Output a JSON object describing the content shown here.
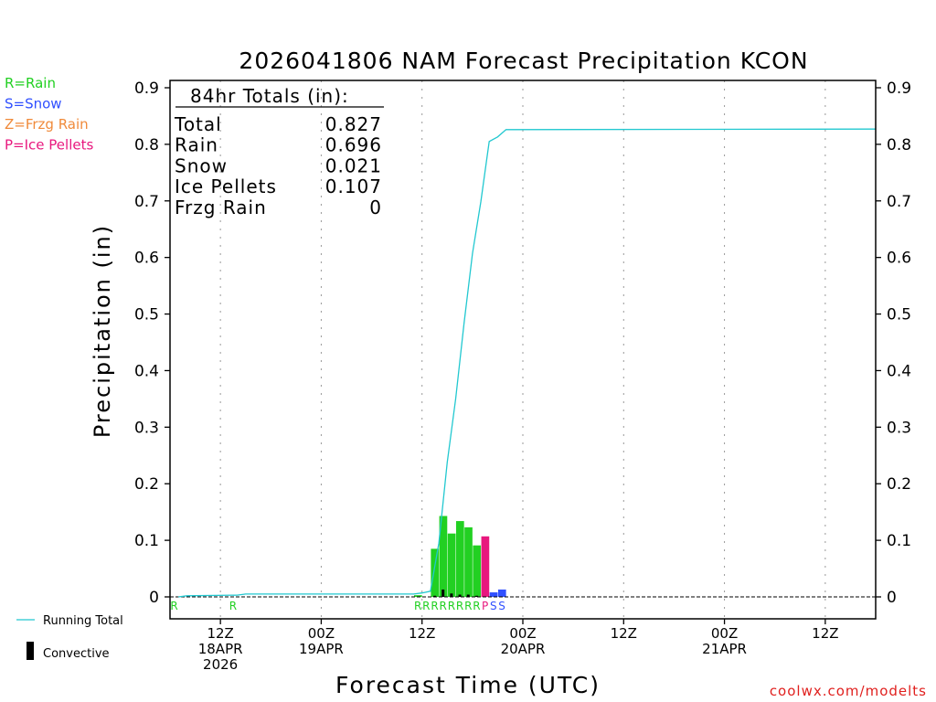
{
  "chart_data": {
    "type": "bar",
    "title": "2026041806 NAM Forecast Precipitation KCON",
    "xlabel": "Forecast Time (UTC)",
    "ylabel": "Precipitation (in)",
    "ylim": [
      0,
      0.9
    ],
    "y_ticks": [
      "0",
      "0.1",
      "0.2",
      "0.3",
      "0.4",
      "0.5",
      "0.6",
      "0.7",
      "0.8",
      "0.9"
    ],
    "x_range_hours": [
      0,
      84
    ],
    "x_ticks": [
      {
        "hour": 6,
        "line1": "12Z",
        "line2": "18APR",
        "line3": "2026"
      },
      {
        "hour": 18,
        "line1": "00Z",
        "line2": "19APR",
        "line3": ""
      },
      {
        "hour": 30,
        "line1": "12Z",
        "line2": "",
        "line3": ""
      },
      {
        "hour": 42,
        "line1": "00Z",
        "line2": "20APR",
        "line3": ""
      },
      {
        "hour": 54,
        "line1": "12Z",
        "line2": "",
        "line3": ""
      },
      {
        "hour": 66,
        "line1": "00Z",
        "line2": "21APR",
        "line3": ""
      },
      {
        "hour": 78,
        "line1": "12Z",
        "line2": "",
        "line3": ""
      }
    ],
    "legend_types": [
      {
        "code": "R",
        "label": "R=Rain",
        "color": "#22d022"
      },
      {
        "code": "S",
        "label": "S=Snow",
        "color": "#3050ff"
      },
      {
        "code": "Z",
        "label": "Z=Frzg Rain",
        "color": "#f08a3a"
      },
      {
        "code": "P",
        "label": "P=Ice Pellets",
        "color": "#e8187e"
      }
    ],
    "bars": [
      {
        "hour": 30,
        "value": 0.003,
        "type": "R",
        "convective": 0
      },
      {
        "hour": 32,
        "value": 0.085,
        "type": "R",
        "convective": 0.002
      },
      {
        "hour": 33,
        "value": 0.143,
        "type": "R",
        "convective": 0.013
      },
      {
        "hour": 34,
        "value": 0.112,
        "type": "R",
        "convective": 0.006
      },
      {
        "hour": 35,
        "value": 0.134,
        "type": "R",
        "convective": 0.004
      },
      {
        "hour": 36,
        "value": 0.123,
        "type": "R",
        "convective": 0.004
      },
      {
        "hour": 37,
        "value": 0.091,
        "type": "R",
        "convective": 0.002
      },
      {
        "hour": 38,
        "value": 0.107,
        "type": "P",
        "convective": 0
      },
      {
        "hour": 39,
        "value": 0.008,
        "type": "S",
        "convective": 0
      },
      {
        "hour": 40,
        "value": 0.013,
        "type": "S",
        "convective": 0
      }
    ],
    "type_markers": [
      {
        "hour": 1,
        "code": "R"
      },
      {
        "hour": 8,
        "code": "R"
      },
      {
        "hour": 30,
        "code": "R"
      },
      {
        "hour": 31,
        "code": "R"
      },
      {
        "hour": 32,
        "code": "R"
      },
      {
        "hour": 33,
        "code": "R"
      },
      {
        "hour": 34,
        "code": "R"
      },
      {
        "hour": 35,
        "code": "R"
      },
      {
        "hour": 36,
        "code": "R"
      },
      {
        "hour": 37,
        "code": "R"
      },
      {
        "hour": 38,
        "code": "P"
      },
      {
        "hour": 39,
        "code": "S"
      },
      {
        "hour": 40,
        "code": "S"
      }
    ],
    "running_total": {
      "name": "Running Total",
      "color": "#22c8d0",
      "points": [
        [
          1,
          0.0
        ],
        [
          2,
          0.002
        ],
        [
          8,
          0.003
        ],
        [
          9,
          0.005
        ],
        [
          29,
          0.005
        ],
        [
          30,
          0.007
        ],
        [
          31,
          0.01
        ],
        [
          32,
          0.095
        ],
        [
          33,
          0.238
        ],
        [
          34,
          0.35
        ],
        [
          35,
          0.484
        ],
        [
          36,
          0.607
        ],
        [
          37,
          0.698
        ],
        [
          38,
          0.805
        ],
        [
          39,
          0.813
        ],
        [
          40,
          0.826
        ],
        [
          84,
          0.827
        ]
      ]
    },
    "convective_legend": "Convective",
    "running_total_legend": "Running Total",
    "totals": {
      "header": "84hr Totals (in):",
      "rows": [
        {
          "label": "Total",
          "value": "0.827"
        },
        {
          "label": "Rain",
          "value": "0.696"
        },
        {
          "label": "Snow",
          "value": "0.021"
        },
        {
          "label": "Ice Pellets",
          "value": "0.107"
        },
        {
          "label": "Frzg Rain",
          "value": "0"
        }
      ]
    },
    "credit": "coolwx.com/modelts"
  }
}
